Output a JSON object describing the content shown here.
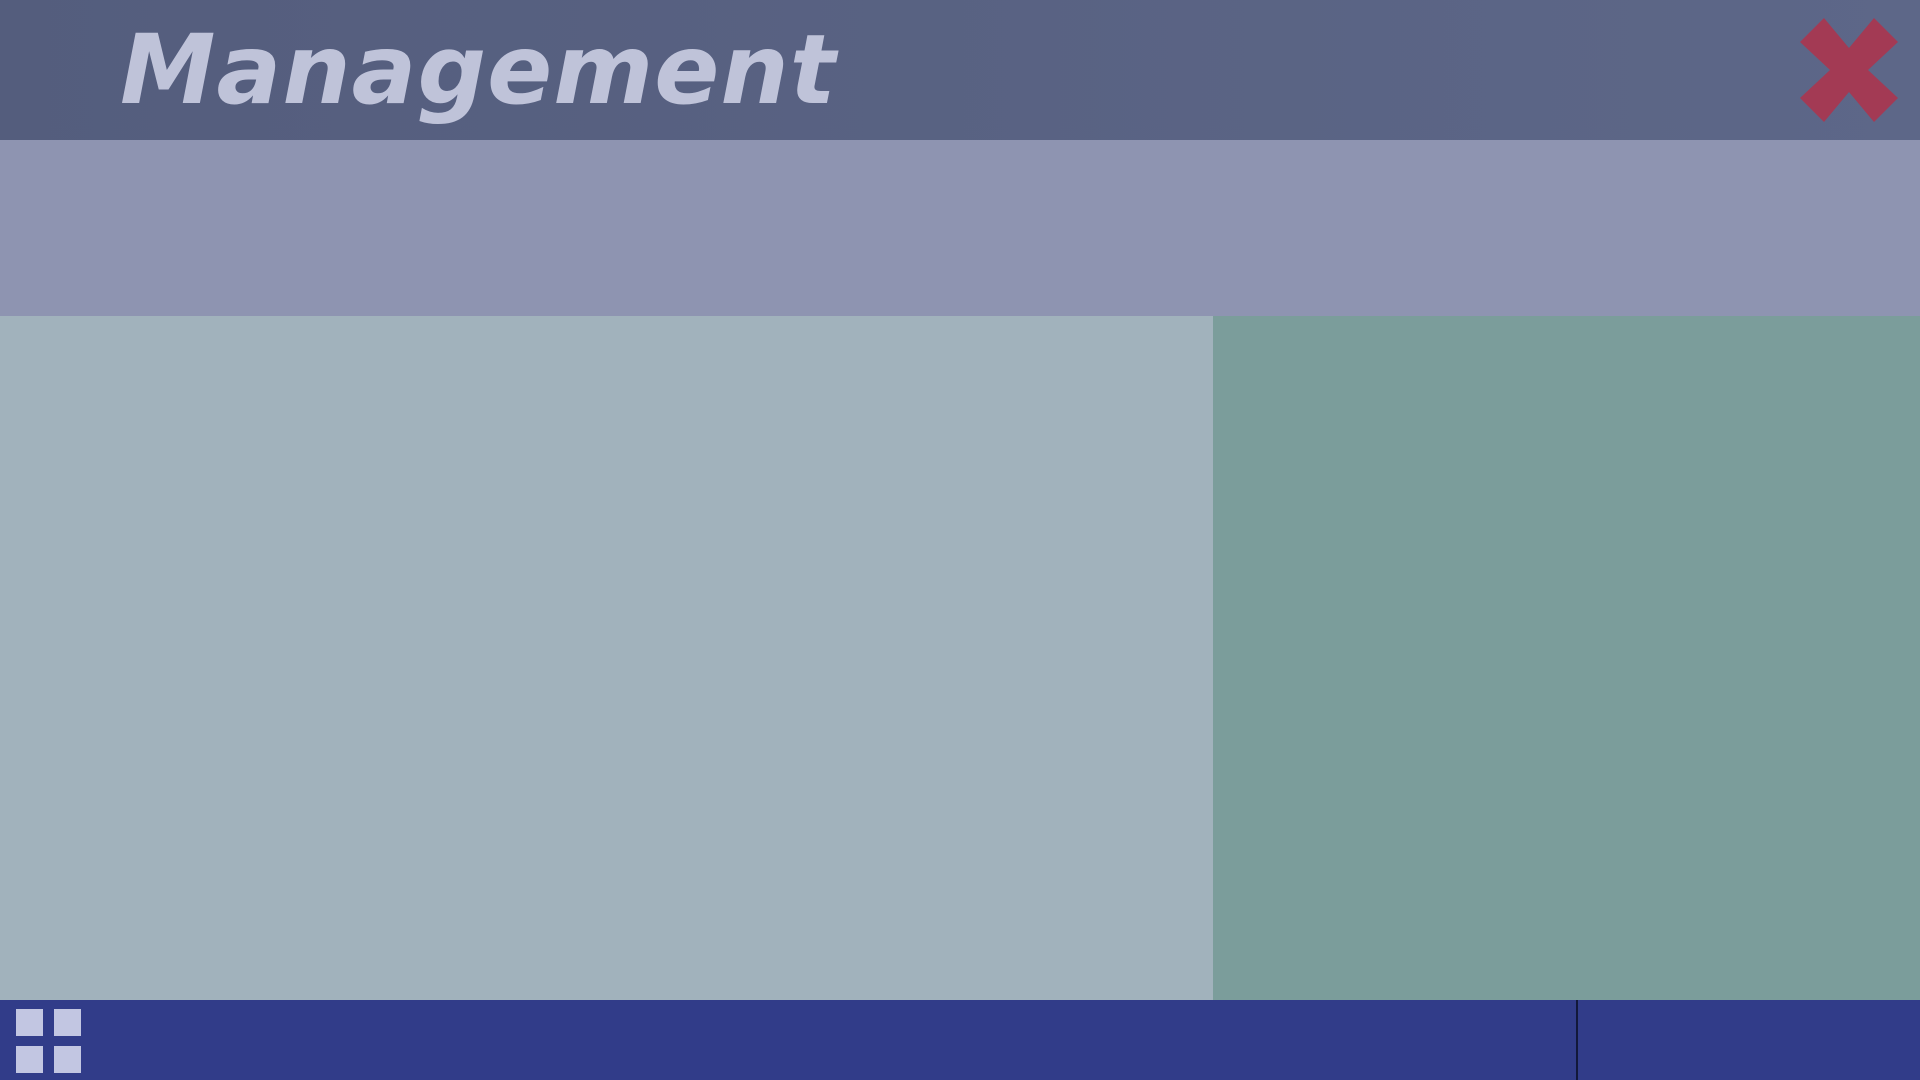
{
  "window": {
    "title": "Management"
  },
  "colors": {
    "header": "#575f80",
    "title_text": "#bfc3d9",
    "close_icon": "#a33a54",
    "subheader": "#8e94b1",
    "left_panel": "#a1b2bc",
    "right_panel": "#7b9d9b",
    "taskbar": "#313c89",
    "start_icon": "#c2c6e2"
  },
  "icons": {
    "close": "close-icon",
    "start": "windows-start-icon"
  }
}
